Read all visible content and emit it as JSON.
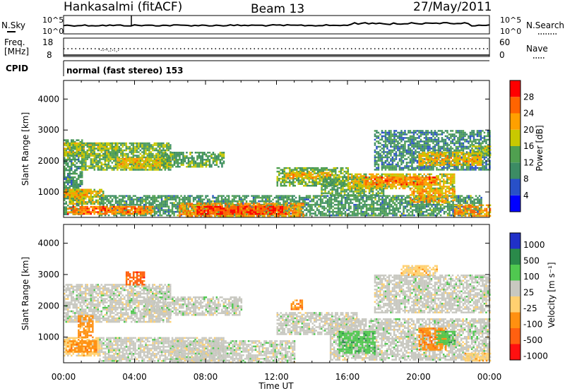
{
  "header": {
    "station": "Hankasalmi (fitACF)",
    "beam": "Beam 13",
    "date": "27/May/2011"
  },
  "noise_panel": {
    "left_label": "N.Sky",
    "right_label": "N.Search",
    "ytick_top": "10^5",
    "ytick_bottom": "10^0"
  },
  "freq_panel": {
    "label_line1": "Freq.",
    "label_line2": "[MHz]",
    "ytick_left_top": "18",
    "ytick_left_bottom": "8",
    "ytick_right_top": "60",
    "ytick_right_bottom": "0",
    "right_label": "Nave"
  },
  "cpid": {
    "label": "CPID",
    "value": "normal (fast stereo) 153"
  },
  "axes": {
    "ylabel": "Slant Range [km]",
    "xlabel": "Time UT",
    "yticks": [
      "1000",
      "2000",
      "3000",
      "4000"
    ],
    "xticks": [
      "00:00",
      "04:00",
      "08:00",
      "12:00",
      "16:00",
      "20:00",
      "00:00"
    ]
  },
  "colors": {
    "power": [
      "#0000ff",
      "#2850c8",
      "#3c8c64",
      "#50a050",
      "#c8c800",
      "#ffa000",
      "#ff6400",
      "#ff0000"
    ],
    "velocity": [
      "#2030c8",
      "#2a8a4a",
      "#50c850",
      "#c8c8c0",
      "#ffd070",
      "#ff9010",
      "#ff6010",
      "#ff1010"
    ]
  },
  "chart_data": [
    {
      "type": "heatmap",
      "name": "Power",
      "colorbar_label": "Power [dB]",
      "colorbar_ticks": [
        "4",
        "8",
        "12",
        "16",
        "20",
        "24",
        "28"
      ],
      "color_range": [
        0,
        32
      ],
      "x_range_hours": [
        0,
        24
      ],
      "y_range_km": [
        180,
        4600
      ],
      "regions": [
        {
          "t0": 0.0,
          "t1": 1.0,
          "r0": 300,
          "r1": 2700,
          "level": 0.35
        },
        {
          "t0": 0.0,
          "t1": 3.0,
          "r0": 2200,
          "r1": 2600,
          "level": 0.55
        },
        {
          "t0": 1.0,
          "t1": 6.0,
          "r0": 1700,
          "r1": 2600,
          "level": 0.45
        },
        {
          "t0": 3.0,
          "t1": 6.0,
          "r0": 1800,
          "r1": 2100,
          "level": 0.65
        },
        {
          "t0": 0.3,
          "t1": 2.2,
          "r0": 600,
          "r1": 1100,
          "level": 0.55
        },
        {
          "t0": 0.0,
          "t1": 1.5,
          "r0": 850,
          "r1": 1100,
          "level": 0.7
        },
        {
          "t0": 5.5,
          "t1": 9.0,
          "r0": 1800,
          "r1": 2300,
          "level": 0.4
        },
        {
          "t0": 2.0,
          "t1": 23.5,
          "r0": 250,
          "r1": 900,
          "level": 0.35
        },
        {
          "t0": 6.5,
          "t1": 13.5,
          "r0": 250,
          "r1": 650,
          "level": 0.75
        },
        {
          "t0": 7.5,
          "t1": 12.5,
          "r0": 280,
          "r1": 550,
          "level": 0.95
        },
        {
          "t0": 0.2,
          "t1": 5.0,
          "r0": 300,
          "r1": 550,
          "level": 0.8
        },
        {
          "t0": 12.0,
          "t1": 16.0,
          "r0": 1200,
          "r1": 1800,
          "level": 0.45
        },
        {
          "t0": 12.5,
          "t1": 15.0,
          "r0": 1450,
          "r1": 1650,
          "level": 0.7
        },
        {
          "t0": 14.5,
          "t1": 18.0,
          "r0": 900,
          "r1": 1500,
          "level": 0.4
        },
        {
          "t0": 16.0,
          "t1": 22.0,
          "r0": 1100,
          "r1": 1600,
          "level": 0.6
        },
        {
          "t0": 17.0,
          "t1": 21.0,
          "r0": 1250,
          "r1": 1500,
          "level": 0.8
        },
        {
          "t0": 17.5,
          "t1": 24.0,
          "r0": 1700,
          "r1": 3000,
          "level": 0.3
        },
        {
          "t0": 20.0,
          "t1": 23.5,
          "r0": 1900,
          "r1": 2300,
          "level": 0.65
        },
        {
          "t0": 19.5,
          "t1": 22.0,
          "r0": 700,
          "r1": 1100,
          "level": 0.7
        },
        {
          "t0": 22.0,
          "t1": 24.0,
          "r0": 250,
          "r1": 600,
          "level": 0.75
        },
        {
          "t0": 23.0,
          "t1": 24.0,
          "r0": 2200,
          "r1": 2500,
          "level": 0.5
        }
      ]
    },
    {
      "type": "heatmap",
      "name": "Velocity",
      "colorbar_label": "Velocity [m s⁻¹]",
      "colorbar_ticks": [
        "1000",
        "500",
        "100",
        "25",
        "-25",
        "-100",
        "-500",
        "-1000"
      ],
      "x_range_hours": [
        0,
        24
      ],
      "y_range_km": [
        180,
        4600
      ],
      "regions": [
        {
          "t0": 0.0,
          "t1": 6.0,
          "r0": 1500,
          "r1": 2700,
          "cat": 3
        },
        {
          "t0": 0.0,
          "t1": 2.0,
          "r0": 400,
          "r1": 1000,
          "cat": 4
        },
        {
          "t0": 0.2,
          "t1": 1.8,
          "r0": 550,
          "r1": 900,
          "cat": 5
        },
        {
          "t0": 0.8,
          "t1": 1.6,
          "r0": 1000,
          "r1": 1700,
          "cat": 5
        },
        {
          "t0": 2.0,
          "t1": 9.0,
          "r0": 250,
          "r1": 1000,
          "cat": 3
        },
        {
          "t0": 6.0,
          "t1": 13.0,
          "r0": 200,
          "r1": 900,
          "cat": 3
        },
        {
          "t0": 4.5,
          "t1": 10.0,
          "r0": 1700,
          "r1": 2300,
          "cat": 3
        },
        {
          "t0": 12.0,
          "t1": 16.5,
          "r0": 1100,
          "r1": 1800,
          "cat": 3
        },
        {
          "t0": 15.0,
          "t1": 24.0,
          "r0": 250,
          "r1": 1600,
          "cat": 3
        },
        {
          "t0": 15.5,
          "t1": 17.5,
          "r0": 500,
          "r1": 1200,
          "cat": 2
        },
        {
          "t0": 17.5,
          "t1": 24.0,
          "r0": 1800,
          "r1": 3000,
          "cat": 3
        },
        {
          "t0": 19.0,
          "t1": 21.0,
          "r0": 3000,
          "r1": 3300,
          "cat": 4
        },
        {
          "t0": 20.0,
          "t1": 21.5,
          "r0": 600,
          "r1": 1300,
          "cat": 5
        },
        {
          "t0": 21.0,
          "t1": 22.0,
          "r0": 800,
          "r1": 1200,
          "cat": 2
        },
        {
          "t0": 22.5,
          "t1": 24.0,
          "r0": 250,
          "r1": 500,
          "cat": 4
        },
        {
          "t0": 3.5,
          "t1": 4.5,
          "r0": 2700,
          "r1": 3100,
          "cat": 6
        },
        {
          "t0": 12.8,
          "t1": 13.4,
          "r0": 1900,
          "r1": 2200,
          "cat": 5
        }
      ]
    }
  ]
}
